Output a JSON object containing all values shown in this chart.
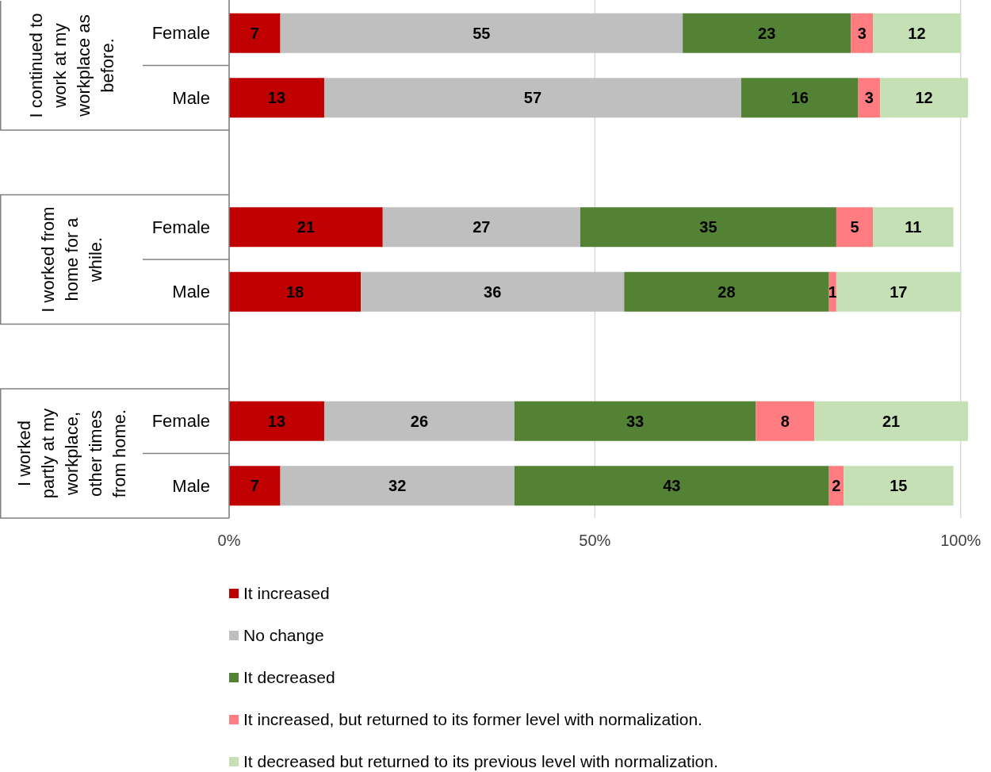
{
  "chart_data": {
    "type": "bar",
    "orientation": "horizontal",
    "stacked": true,
    "categories": [
      "Female",
      "Male",
      null,
      "Female",
      "Male",
      null,
      "Female",
      "Male"
    ],
    "annotations": [
      "I continued to work at my workplace as before.",
      "I worked from home for a while.",
      "I worked partly at my workplace, other times from home."
    ],
    "series": [
      {
        "name": "It increased",
        "color": "#c00000",
        "values": [
          7,
          13,
          null,
          21,
          18,
          null,
          13,
          7
        ]
      },
      {
        "name": "No change",
        "color": "#bfbfbf",
        "values": [
          55,
          57,
          null,
          27,
          36,
          null,
          26,
          32
        ]
      },
      {
        "name": "It decreased",
        "color": "#548235",
        "values": [
          23,
          16,
          null,
          35,
          28,
          null,
          33,
          43
        ]
      },
      {
        "name": "It increased, but returned to its former level with normalization.",
        "color": "#ff7c80",
        "values": [
          3,
          3,
          null,
          5,
          1,
          null,
          8,
          2
        ]
      },
      {
        "name": "It decreased but returned to its previous level with normalization.",
        "color": "#c5e0b4",
        "values": [
          12,
          12,
          null,
          11,
          17,
          null,
          21,
          15
        ]
      }
    ],
    "xlim": [
      0,
      101
    ],
    "xticks": [
      {
        "value": 0,
        "label": "0%"
      },
      {
        "value": 50,
        "label": "50%"
      },
      {
        "value": 100,
        "label": "100%"
      }
    ],
    "grid": "x",
    "legend": "bottom",
    "data_labels": true
  }
}
